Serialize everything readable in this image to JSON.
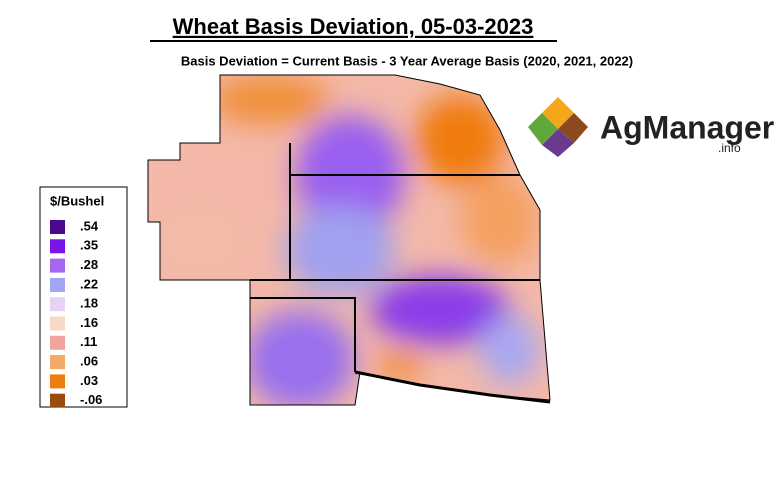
{
  "title": "Wheat Basis Deviation, 05-03-2023",
  "subtitle": "Basis Deviation = Current Basis - 3 Year Average Basis (2020, 2021, 2022)",
  "legend": {
    "title": "$/Bushel",
    "items": [
      {
        "label": ".54",
        "color": "#4b0a8c"
      },
      {
        "label": ".35",
        "color": "#7a14e6"
      },
      {
        "label": ".28",
        "color": "#a566f0"
      },
      {
        "label": ".22",
        "color": "#9fa6f2"
      },
      {
        "label": ".18",
        "color": "#e6d2f5"
      },
      {
        "label": ".16",
        "color": "#f7d9c8"
      },
      {
        "label": ".11",
        "color": "#f3a49a"
      },
      {
        "label": ".06",
        "color": "#f4a86a"
      },
      {
        "label": ".03",
        "color": "#f07c10"
      },
      {
        "label": "-.06",
        "color": "#9a4c0c"
      }
    ]
  },
  "logo": {
    "name": "AgManager",
    "suffix": ".info"
  }
}
